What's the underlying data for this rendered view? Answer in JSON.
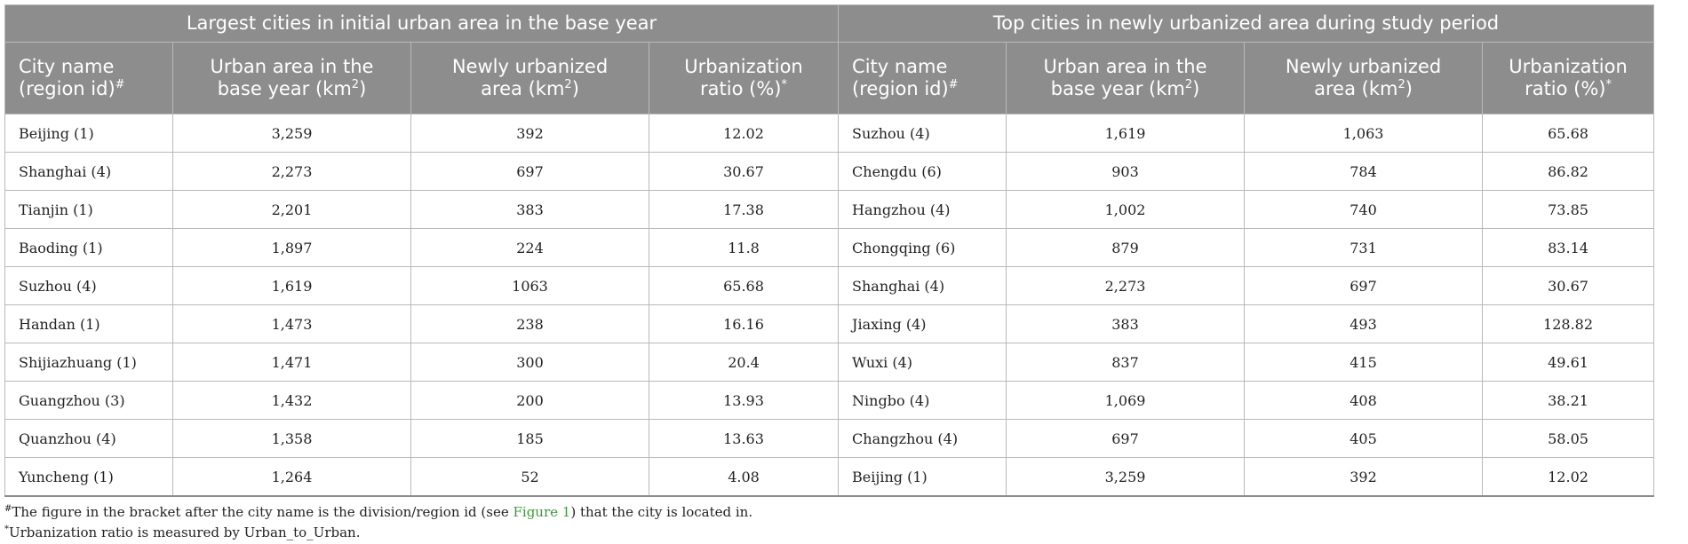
{
  "groups": {
    "left": "Largest cities in initial urban area in the base year",
    "right": "Top cities in newly urbanized area during study period"
  },
  "columns": {
    "city_name_line1": "City name",
    "city_name_line2": "(region id)",
    "city_name_mark": "#",
    "urban_area_line1": "Urban area in the",
    "urban_area_line2": "base year (km",
    "newly_line1": "Newly urbanized",
    "newly_line2": "area (km",
    "unit_exp": "2",
    "unit_close": ")",
    "ratio_line1": "Urbanization",
    "ratio_line2": "ratio (%)",
    "ratio_mark": "*"
  },
  "left_rows": [
    [
      "Beijing (1)",
      "3,259",
      "392",
      "12.02"
    ],
    [
      "Shanghai (4)",
      "2,273",
      "697",
      "30.67"
    ],
    [
      "Tianjin (1)",
      "2,201",
      "383",
      "17.38"
    ],
    [
      "Baoding (1)",
      "1,897",
      "224",
      "11.8"
    ],
    [
      "Suzhou (4)",
      "1,619",
      "1063",
      "65.68"
    ],
    [
      "Handan (1)",
      "1,473",
      "238",
      "16.16"
    ],
    [
      "Shijiazhuang (1)",
      "1,471",
      "300",
      "20.4"
    ],
    [
      "Guangzhou (3)",
      "1,432",
      "200",
      "13.93"
    ],
    [
      "Quanzhou (4)",
      "1,358",
      "185",
      "13.63"
    ],
    [
      "Yuncheng (1)",
      "1,264",
      "52",
      "4.08"
    ]
  ],
  "right_rows": [
    [
      "Suzhou (4)",
      "1,619",
      "1,063",
      "65.68"
    ],
    [
      "Chengdu (6)",
      "903",
      "784",
      "86.82"
    ],
    [
      "Hangzhou (4)",
      "1,002",
      "740",
      "73.85"
    ],
    [
      "Chongqing (6)",
      "879",
      "731",
      "83.14"
    ],
    [
      "Shanghai (4)",
      "2,273",
      "697",
      "30.67"
    ],
    [
      "Jiaxing (4)",
      "383",
      "493",
      "128.82"
    ],
    [
      "Wuxi (4)",
      "837",
      "415",
      "49.61"
    ],
    [
      "Ningbo (4)",
      "1,069",
      "408",
      "38.21"
    ],
    [
      "Changzhou (4)",
      "697",
      "405",
      "58.05"
    ],
    [
      "Beijing (1)",
      "3,259",
      "392",
      "12.02"
    ]
  ],
  "notes": {
    "note1_mark": "#",
    "note1_before": "The figure in the bracket after the city name is the division/region id (see ",
    "note1_link": "Figure 1",
    "note1_after": ") that the city is located in.",
    "note2_mark": "*",
    "note2_text": "Urbanization ratio is measured by Urban_to_Urban."
  },
  "colors": {
    "header_bg": "#8d8d8d",
    "header_text": "#ffffff",
    "grid": "#b9b9b9",
    "link": "#3c9b3a"
  }
}
